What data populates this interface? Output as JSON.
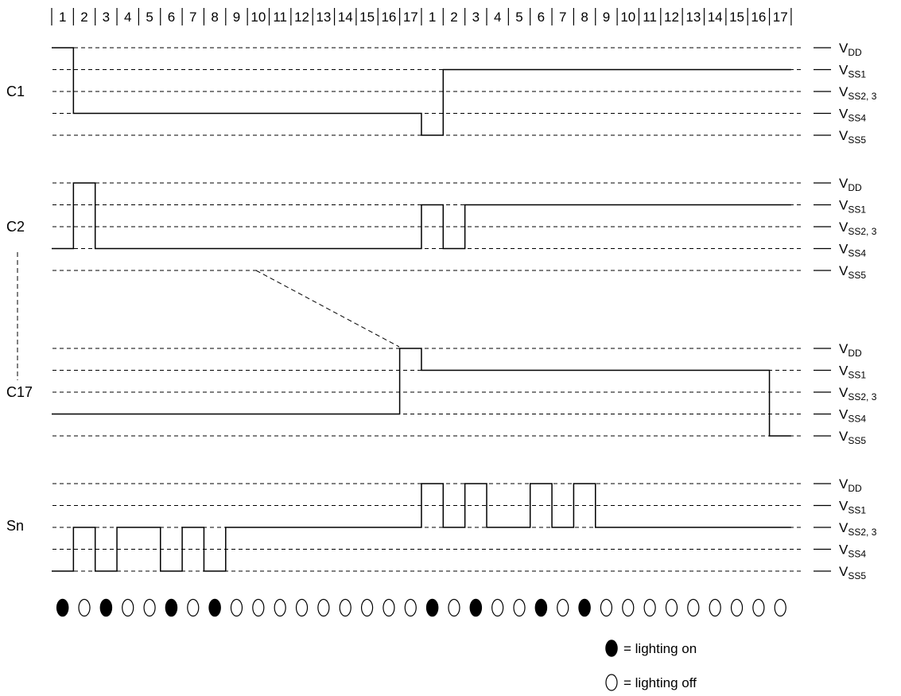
{
  "slot_numbers": [
    "1",
    "2",
    "3",
    "4",
    "5",
    "6",
    "7",
    "8",
    "9",
    "10",
    "11",
    "12",
    "13",
    "14",
    "15",
    "16",
    "17",
    "1",
    "2",
    "3",
    "4",
    "5",
    "6",
    "7",
    "8",
    "9",
    "10",
    "11",
    "12",
    "13",
    "14",
    "15",
    "16",
    "17"
  ],
  "voltage_levels": [
    {
      "main": "V",
      "sub": "DD"
    },
    {
      "main": "V",
      "sub": "SS1"
    },
    {
      "main": "V",
      "sub": "SS2, 3"
    },
    {
      "main": "V",
      "sub": "SS4"
    },
    {
      "main": "V",
      "sub": "SS5"
    }
  ],
  "waveforms": [
    {
      "label": "C1",
      "levels": [
        0,
        3,
        3,
        3,
        3,
        3,
        3,
        3,
        3,
        3,
        3,
        3,
        3,
        3,
        3,
        3,
        3,
        4,
        1,
        1,
        1,
        1,
        1,
        1,
        1,
        1,
        1,
        1,
        1,
        1,
        1,
        1,
        1,
        1
      ]
    },
    {
      "label": "C2",
      "levels": [
        3,
        0,
        3,
        3,
        3,
        3,
        3,
        3,
        3,
        3,
        3,
        3,
        3,
        3,
        3,
        3,
        3,
        1,
        3,
        1,
        1,
        1,
        1,
        1,
        1,
        1,
        1,
        1,
        1,
        1,
        1,
        1,
        1,
        1
      ]
    },
    {
      "label": "C17",
      "levels": [
        3,
        3,
        3,
        3,
        3,
        3,
        3,
        3,
        3,
        3,
        3,
        3,
        3,
        3,
        3,
        3,
        0,
        1,
        1,
        1,
        1,
        1,
        1,
        1,
        1,
        1,
        1,
        1,
        1,
        1,
        1,
        1,
        1,
        4
      ]
    },
    {
      "label": "Sn",
      "levels": [
        4,
        2,
        4,
        2,
        2,
        4,
        2,
        4,
        2,
        2,
        2,
        2,
        2,
        2,
        2,
        2,
        2,
        0,
        2,
        0,
        2,
        2,
        0,
        2,
        0,
        2,
        2,
        2,
        2,
        2,
        2,
        2,
        2,
        2
      ]
    }
  ],
  "lighting": [
    1,
    0,
    1,
    0,
    0,
    1,
    0,
    1,
    0,
    0,
    0,
    0,
    0,
    0,
    0,
    0,
    0,
    1,
    0,
    1,
    0,
    0,
    1,
    0,
    1,
    0,
    0,
    0,
    0,
    0,
    0,
    0,
    0,
    0
  ],
  "legend": {
    "on_label": "= lighting on",
    "off_label": "= lighting off"
  }
}
